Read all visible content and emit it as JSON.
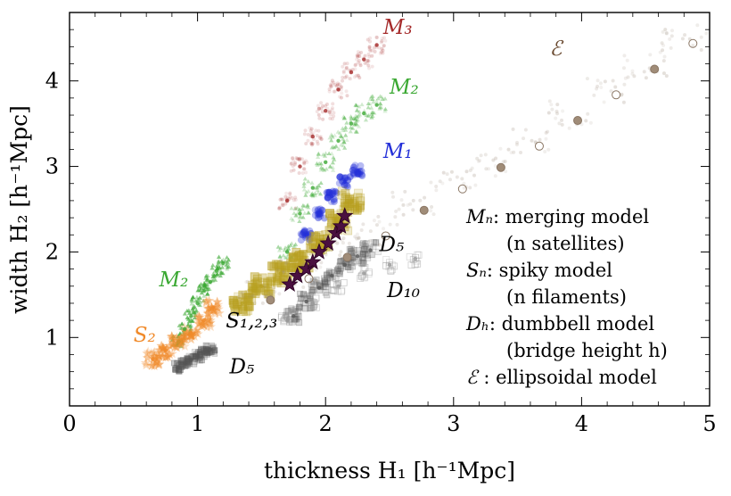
{
  "chart_data": {
    "type": "scatter",
    "title": "",
    "xlabel": "thickness  H₁  [h⁻¹Mpc]",
    "ylabel": "width  H₂  [h⁻¹Mpc]",
    "xlim": [
      0,
      5
    ],
    "ylim": [
      0.2,
      4.8
    ],
    "xticks": [
      "0",
      "1",
      "2",
      "3",
      "4",
      "5"
    ],
    "yticks": [
      "1",
      "2",
      "3",
      "4"
    ],
    "grid": false,
    "series": [
      {
        "name": "M3",
        "color": "#a52a2a",
        "label": "M₃",
        "x": [
          1.7,
          1.8,
          1.9,
          2.0,
          2.1,
          2.2,
          2.3,
          2.4
        ],
        "y": [
          2.6,
          3.0,
          3.35,
          3.65,
          3.9,
          4.1,
          4.25,
          4.42
        ]
      },
      {
        "name": "M2",
        "color": "#3aa832",
        "label": "M₂",
        "x": [
          1.7,
          1.8,
          1.9,
          2.0,
          2.1,
          2.2,
          2.3,
          2.4
        ],
        "y": [
          2.0,
          2.45,
          2.75,
          3.05,
          3.3,
          3.5,
          3.62,
          3.72
        ]
      },
      {
        "name": "M1",
        "color": "#2430d8",
        "label": "M₁",
        "x": [
          1.85,
          1.95,
          2.05,
          2.15,
          2.25
        ],
        "y": [
          2.2,
          2.45,
          2.65,
          2.82,
          2.95
        ]
      },
      {
        "name": "M2 (low)",
        "color": "#3aa832",
        "label": "M₂",
        "x": [
          0.85,
          0.9,
          0.95,
          1.0,
          1.05,
          1.1,
          1.15,
          1.2
        ],
        "y": [
          0.95,
          1.1,
          1.25,
          1.4,
          1.55,
          1.65,
          1.78,
          1.87
        ]
      },
      {
        "name": "S2",
        "color": "#f08a2a",
        "label": "S₂",
        "x": [
          0.65,
          0.75,
          0.85,
          0.95,
          1.05,
          1.12
        ],
        "y": [
          0.75,
          0.85,
          0.95,
          1.05,
          1.2,
          1.35
        ]
      },
      {
        "name": "S1,2,3",
        "color": "#b8a020",
        "label": "S₁,₂,₃",
        "x": [
          1.35,
          1.5,
          1.65,
          1.8,
          1.95,
          2.1,
          2.2
        ],
        "y": [
          1.4,
          1.6,
          1.75,
          1.9,
          2.1,
          2.35,
          2.6
        ]
      },
      {
        "name": "star",
        "color": "#4a1040",
        "label": "",
        "x": [
          1.72,
          1.78,
          1.85,
          1.9,
          1.95,
          2.02,
          2.08,
          2.12,
          2.15
        ],
        "y": [
          1.62,
          1.72,
          1.8,
          1.88,
          2.0,
          2.1,
          2.22,
          2.3,
          2.42
        ]
      },
      {
        "name": "D5",
        "color": "#555555",
        "label": "D₅",
        "x": [
          0.85,
          0.9,
          0.95,
          1.0,
          1.05,
          1.1
        ],
        "y": [
          0.65,
          0.7,
          0.74,
          0.78,
          0.82,
          0.86
        ]
      },
      {
        "name": "D5 (upper)",
        "color": "#555555",
        "label": "D₅",
        "x": [
          1.75,
          1.85,
          1.95,
          2.05,
          2.15,
          2.25,
          2.35
        ],
        "y": [
          1.25,
          1.42,
          1.58,
          1.72,
          1.85,
          1.95,
          2.02
        ]
      },
      {
        "name": "D10",
        "color": "#999999",
        "label": "D₁₀",
        "x": [
          1.7,
          1.9,
          2.1,
          2.3,
          2.5,
          2.7
        ],
        "y": [
          1.2,
          1.4,
          1.6,
          1.75,
          1.85,
          1.92
        ]
      },
      {
        "name": "E",
        "color": "#a09080",
        "label": "ℰ",
        "x": [
          1.5,
          1.8,
          2.1,
          2.4,
          2.7,
          3.0,
          3.3,
          3.6,
          3.9,
          4.2,
          4.5,
          4.8
        ],
        "y": [
          1.5,
          1.75,
          2.0,
          2.25,
          2.55,
          2.8,
          3.05,
          3.3,
          3.6,
          3.9,
          4.2,
          4.5
        ]
      }
    ],
    "legend": [
      {
        "symbol": "Mₙ",
        "text": ": merging model"
      },
      {
        "symbol": "",
        "text": "(n satellites)"
      },
      {
        "symbol": "Sₙ",
        "text": ": spiky model"
      },
      {
        "symbol": "",
        "text": "(n filaments)"
      },
      {
        "symbol": "Dₕ",
        "text": ": dumbbell model"
      },
      {
        "symbol": "",
        "text": "(bridge height h)"
      },
      {
        "symbol": "ℰ",
        "text": " : ellipsoidal model"
      }
    ],
    "legend_placement": "lower-right"
  }
}
